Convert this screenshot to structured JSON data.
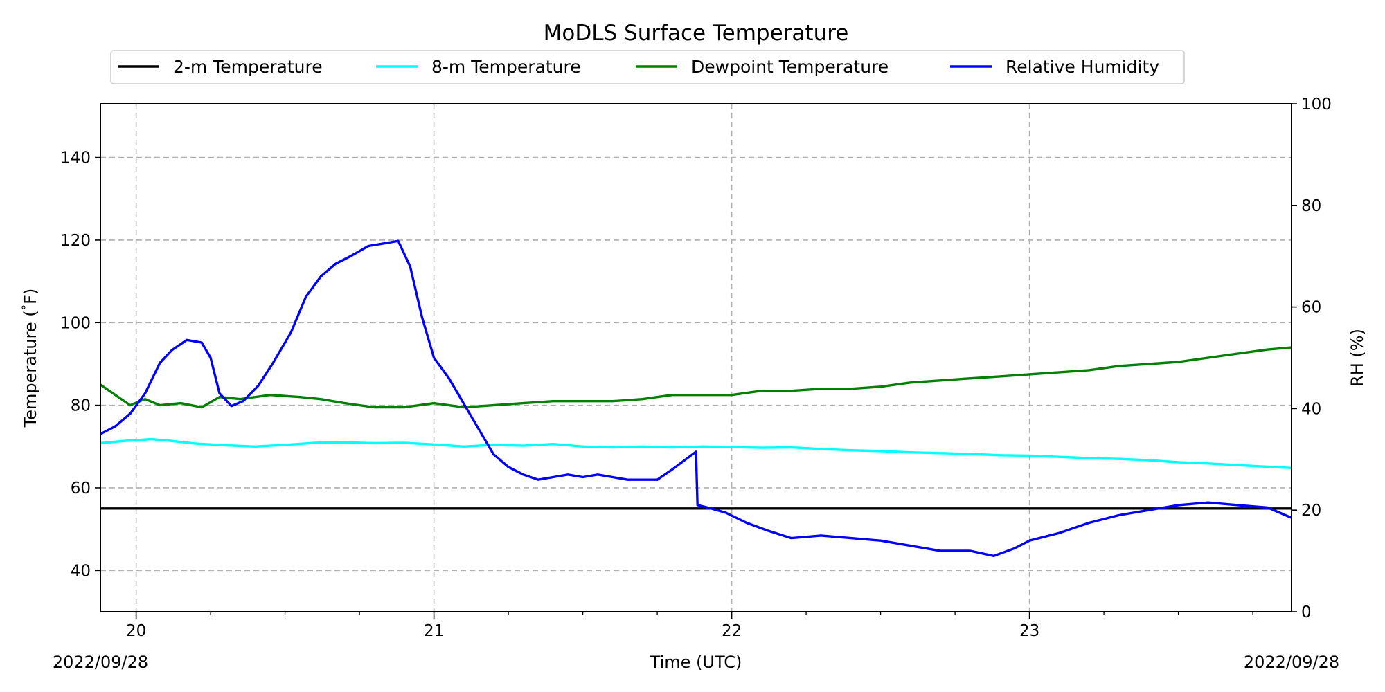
{
  "chart_data": {
    "type": "line",
    "title": "MoDLS Surface Temperature",
    "xlabel": "Time (UTC)",
    "ylabel_left": "Temperature ($^\\circ$F)",
    "ylabel_right": "RH (%)",
    "start_date_label": "2022/09/28",
    "end_date_label": "2022/09/28",
    "x_range_hours": [
      19.88,
      23.88
    ],
    "x_ticks": [
      {
        "value": 20,
        "label": "20"
      },
      {
        "value": 21,
        "label": "21"
      },
      {
        "value": 22,
        "label": "22"
      },
      {
        "value": 23,
        "label": "23"
      }
    ],
    "ylim_left": [
      30,
      153
    ],
    "yticks_left": [
      40,
      60,
      80,
      100,
      120,
      140
    ],
    "ylim_right": [
      0,
      100
    ],
    "yticks_right": [
      0,
      20,
      40,
      60,
      80,
      100
    ],
    "grid": true,
    "legend_position": "top-center, above plot",
    "series": [
      {
        "name": "2-m Temperature",
        "color": "#000000",
        "axis": "left",
        "x": [
          19.88,
          20.5,
          21.0,
          21.5,
          22.0,
          22.5,
          23.0,
          23.5,
          23.88
        ],
        "y": [
          55.0,
          55.0,
          55.0,
          55.0,
          55.0,
          55.0,
          55.0,
          55.0,
          55.0
        ]
      },
      {
        "name": "8-m Temperature",
        "color": "#00ffff",
        "axis": "left",
        "x": [
          19.88,
          19.95,
          20.05,
          20.1,
          20.2,
          20.3,
          20.4,
          20.5,
          20.6,
          20.7,
          20.8,
          20.9,
          21.0,
          21.1,
          21.2,
          21.3,
          21.4,
          21.5,
          21.6,
          21.7,
          21.8,
          21.9,
          22.0,
          22.1,
          22.2,
          22.3,
          22.4,
          22.5,
          22.6,
          22.7,
          22.8,
          22.9,
          23.0,
          23.1,
          23.2,
          23.3,
          23.4,
          23.5,
          23.6,
          23.7,
          23.8,
          23.88
        ],
        "y": [
          70.8,
          71.3,
          71.8,
          71.5,
          70.7,
          70.3,
          70.0,
          70.4,
          70.9,
          71.0,
          70.8,
          70.9,
          70.5,
          70.0,
          70.4,
          70.2,
          70.6,
          70.0,
          69.8,
          70.0,
          69.8,
          70.0,
          69.9,
          69.7,
          69.8,
          69.4,
          69.1,
          68.9,
          68.6,
          68.4,
          68.2,
          67.9,
          67.8,
          67.5,
          67.2,
          67.0,
          66.7,
          66.2,
          65.9,
          65.5,
          65.1,
          64.8
        ]
      },
      {
        "name": "Dewpoint Temperature",
        "color": "#008000",
        "axis": "left",
        "x": [
          19.88,
          19.93,
          19.98,
          20.03,
          20.08,
          20.15,
          20.22,
          20.28,
          20.35,
          20.45,
          20.55,
          20.62,
          20.7,
          20.8,
          20.9,
          21.0,
          21.1,
          21.2,
          21.3,
          21.4,
          21.5,
          21.6,
          21.7,
          21.8,
          21.9,
          22.0,
          22.1,
          22.2,
          22.3,
          22.4,
          22.5,
          22.6,
          22.7,
          22.8,
          22.9,
          23.0,
          23.1,
          23.2,
          23.3,
          23.4,
          23.5,
          23.6,
          23.7,
          23.8,
          23.88
        ],
        "y": [
          85.0,
          82.5,
          80.0,
          81.5,
          80.0,
          80.5,
          79.5,
          82.0,
          81.5,
          82.5,
          82.0,
          81.5,
          80.5,
          79.5,
          79.5,
          80.5,
          79.5,
          80.0,
          80.5,
          81.0,
          81.0,
          81.0,
          81.5,
          82.5,
          82.5,
          82.5,
          83.5,
          83.5,
          84.0,
          84.0,
          84.5,
          85.5,
          86.0,
          86.5,
          87.0,
          87.5,
          88.0,
          88.5,
          89.5,
          90.0,
          90.5,
          91.5,
          92.5,
          93.5,
          94.0
        ]
      },
      {
        "name": "Relative Humidity",
        "color": "#0000ff",
        "axis": "right",
        "x": [
          19.88,
          19.93,
          19.98,
          20.03,
          20.08,
          20.12,
          20.17,
          20.22,
          20.25,
          20.28,
          20.32,
          20.36,
          20.41,
          20.46,
          20.52,
          20.57,
          20.62,
          20.67,
          20.72,
          20.78,
          20.83,
          20.88,
          20.92,
          20.96,
          21.0,
          21.05,
          21.1,
          21.15,
          21.2,
          21.25,
          21.3,
          21.35,
          21.4,
          21.45,
          21.5,
          21.55,
          21.6,
          21.65,
          21.7,
          21.75,
          21.8,
          21.88,
          21.885,
          21.92,
          21.98,
          22.05,
          22.12,
          22.2,
          22.3,
          22.4,
          22.5,
          22.6,
          22.7,
          22.8,
          22.88,
          22.95,
          23.0,
          23.1,
          23.2,
          23.3,
          23.4,
          23.5,
          23.6,
          23.7,
          23.8,
          23.88
        ],
        "y": [
          35.0,
          36.5,
          39.0,
          43.0,
          49.0,
          51.5,
          53.5,
          53.0,
          50.0,
          43.0,
          40.5,
          41.5,
          44.5,
          49.0,
          55.0,
          62.0,
          66.0,
          68.5,
          70.0,
          72.0,
          72.5,
          73.0,
          68.0,
          58.0,
          50.0,
          46.0,
          41.0,
          36.0,
          31.0,
          28.5,
          27.0,
          26.0,
          26.5,
          27.0,
          26.5,
          27.0,
          26.5,
          26.0,
          26.0,
          26.0,
          28.0,
          31.5,
          21.0,
          20.5,
          19.5,
          17.5,
          16.0,
          14.5,
          15.0,
          14.5,
          14.0,
          13.0,
          12.0,
          12.0,
          11.0,
          12.5,
          14.0,
          15.5,
          17.5,
          19.0,
          20.0,
          21.0,
          21.5,
          21.0,
          20.5,
          18.5
        ]
      }
    ]
  }
}
